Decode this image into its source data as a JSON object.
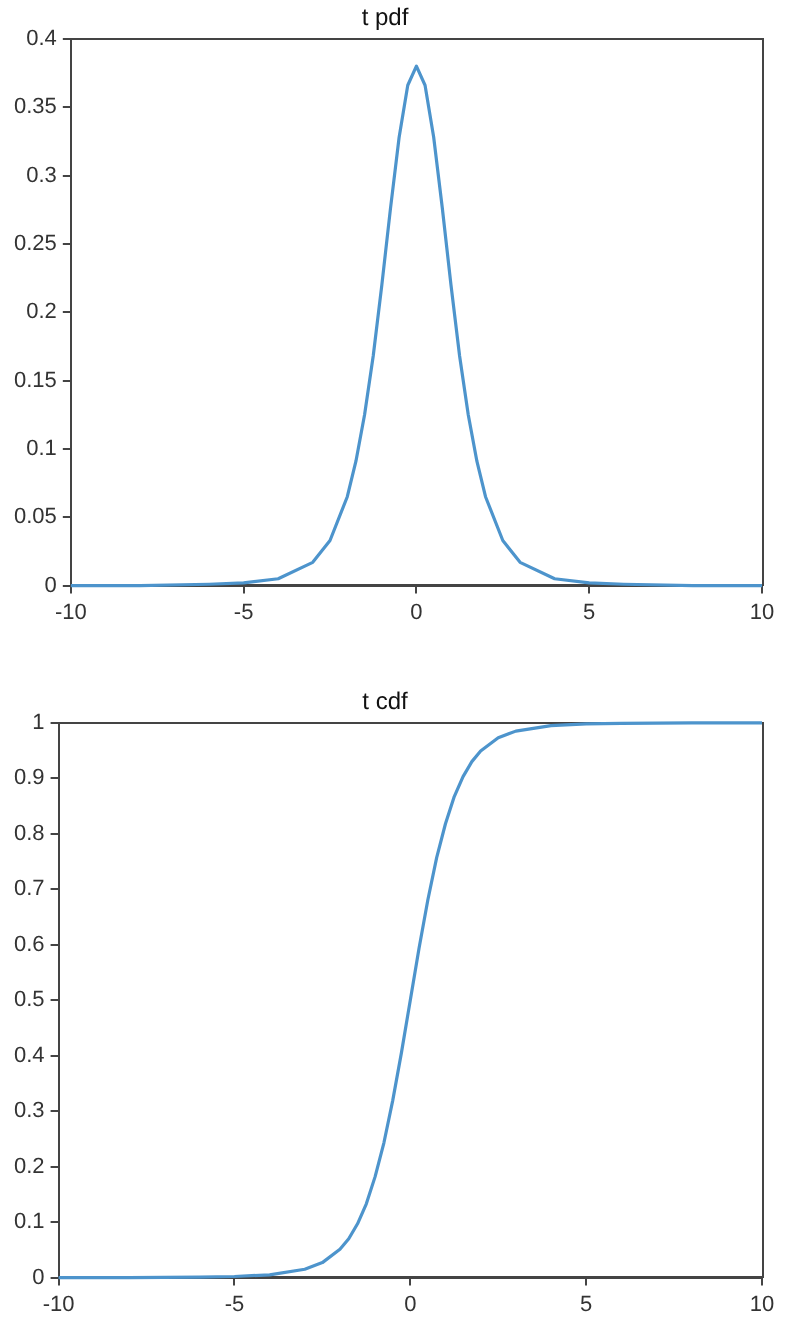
{
  "chart_data": [
    {
      "type": "line",
      "title": "t pdf",
      "legend": false,
      "x": [
        -10,
        -8,
        -6,
        -5,
        -4,
        -3,
        -2.5,
        -2,
        -1.75,
        -1.5,
        -1.25,
        -1,
        -0.75,
        -0.5,
        -0.25,
        0,
        0.25,
        0.5,
        0.75,
        1,
        1.25,
        1.5,
        1.75,
        2,
        2.5,
        3,
        4,
        5,
        6,
        8,
        10
      ],
      "series": [
        {
          "color": "#4d94cc",
          "values": [
            0,
            0,
            0.001,
            0.002,
            0.005,
            0.017,
            0.033,
            0.065,
            0.091,
            0.125,
            0.168,
            0.22,
            0.276,
            0.328,
            0.366,
            0.38,
            0.366,
            0.328,
            0.276,
            0.22,
            0.168,
            0.125,
            0.091,
            0.065,
            0.033,
            0.017,
            0.005,
            0.002,
            0.001,
            0,
            0
          ]
        }
      ],
      "xlim": [
        -10,
        10
      ],
      "xticks": [
        -10,
        -5,
        0,
        5,
        10
      ],
      "ylim": [
        0,
        0.4
      ],
      "yticks": [
        0,
        0.05,
        0.1,
        0.15,
        0.2,
        0.25,
        0.3,
        0.35,
        0.4
      ]
    },
    {
      "type": "line",
      "title": "t cdf",
      "legend": false,
      "x": [
        -10,
        -8,
        -6,
        -5,
        -4,
        -3,
        -2.5,
        -2,
        -1.75,
        -1.5,
        -1.25,
        -1,
        -0.75,
        -0.5,
        -0.25,
        0,
        0.25,
        0.5,
        0.75,
        1,
        1.25,
        1.5,
        1.75,
        2,
        2.5,
        3,
        4,
        5,
        6,
        8,
        10
      ],
      "series": [
        {
          "color": "#4d94cc",
          "values": [
            0,
            0,
            0.001,
            0.002,
            0.005,
            0.015,
            0.027,
            0.051,
            0.07,
            0.097,
            0.133,
            0.182,
            0.243,
            0.319,
            0.406,
            0.5,
            0.594,
            0.681,
            0.757,
            0.818,
            0.867,
            0.903,
            0.93,
            0.949,
            0.973,
            0.985,
            0.995,
            0.998,
            0.999,
            1,
            1
          ]
        }
      ],
      "xlim": [
        -10,
        10
      ],
      "xticks": [
        -10,
        -5,
        0,
        5,
        10
      ],
      "ylim": [
        0,
        1
      ],
      "yticks": [
        0,
        0.1,
        0.2,
        0.3,
        0.4,
        0.5,
        0.6,
        0.7,
        0.8,
        0.9,
        1
      ]
    }
  ]
}
